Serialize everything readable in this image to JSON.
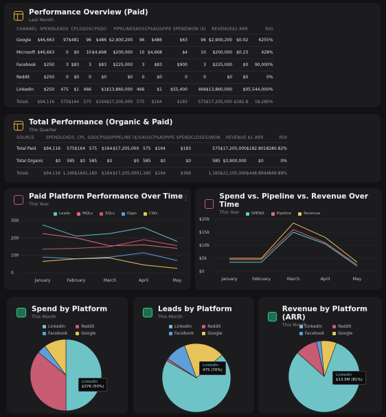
{
  "colors": {
    "linkedin": "#6ec3c6",
    "reddit": "#c75c73",
    "facebook": "#5e9fd8",
    "google": "#e8c35a",
    "leads": "#5ec6cf",
    "mqls": "#e06b7a",
    "sqls": "#c9596c",
    "opps": "#5a9fe0",
    "cws": "#e8c65a",
    "spend": "#5ec6cf",
    "pipeline": "#e06b7a",
    "revenue": "#e8c65a"
  },
  "perf_paid": {
    "title": "Performance Overview (Paid)",
    "subtitle": "Last Month",
    "headers": [
      "CHANNEL",
      "SPEND",
      "LEADS",
      "CPL",
      "SQOS",
      "CPSQO",
      "PIPELINE",
      "SAOS",
      "CPSAOS",
      "PIPE SPEND",
      "WON ($)",
      "REVENUE",
      "$1 ARR",
      "ROI"
    ],
    "rows": [
      [
        "Google",
        "$46,663",
        "97",
        "$481",
        "96",
        "$486",
        "$2,900,200",
        "96",
        "$486",
        "$63",
        "96",
        "$2,900,200",
        "$0.02",
        "6255%"
      ],
      [
        "Microsoft",
        "$46,663",
        "0",
        "$0",
        "10",
        "$4,668",
        "$200,000",
        "10",
        "$4,668",
        "$4",
        "10",
        "$200,000",
        "$0.23",
        "428%"
      ],
      [
        "Facebook",
        "$250",
        "3",
        "$83",
        "3",
        "$83",
        "$225,000",
        "3",
        "$83",
        "$900",
        "3",
        "$225,000",
        "$0",
        "90,000%"
      ],
      [
        "Reddit",
        "$250",
        "0",
        "$0",
        "0",
        "$0",
        "$0",
        "0",
        "$0",
        "0",
        "0",
        "$0",
        "$0",
        "0%"
      ],
      [
        "LinkedIn",
        "$250",
        "475",
        "$1",
        "466",
        "$1",
        "$13,860,000",
        "466",
        "$1",
        "$55,400",
        "466",
        "$13,860,000",
        "$0",
        "5,544,000%"
      ]
    ],
    "total": [
      "Totals",
      "$94,116",
      "575",
      "$164",
      "575",
      "$164",
      "$17,205,000",
      "575",
      "$164",
      "$183",
      "575",
      "$17,205,000",
      "$182.8",
      "18,280%"
    ]
  },
  "perf_total": {
    "title": "Total Performance (Organic & Paid)",
    "subtitle": "This Quarter",
    "headers": [
      "SOURCE",
      "SPEND",
      "LEADS",
      "CPL",
      "SQO",
      "CPSQO",
      "PIPELINE ($)",
      "SAOS",
      "CPSAO",
      "PIPE SPEND",
      "CLOSES/WON",
      "REVENUE",
      "$1 ARR",
      "ROI"
    ],
    "rows": [
      [
        "Total Paid",
        "$94,116",
        "575",
        "$164",
        "575",
        "$164",
        "$17,205,000",
        "575",
        "$164",
        "$183",
        "575",
        "$17,205,000",
        "$182.80",
        "18280.82%"
      ],
      [
        "Total Organic",
        "$0",
        "585",
        "$0",
        "585",
        "$0",
        "$0",
        "585",
        "$0",
        "$0",
        "585",
        "$3,900,000",
        "$0",
        "0%"
      ]
    ],
    "total": [
      "Totals",
      "$94,116",
      "1,160",
      "$164",
      "1,160",
      "$164",
      "$17,205,000",
      "1,160",
      "$164",
      "$366",
      "1,160",
      "$21,105,000",
      "$448.89",
      "44849.89%"
    ]
  },
  "paid_platform": {
    "title": "Paid Platform Performance Over Time",
    "subtitle": "This Year",
    "menu": "⋮"
  },
  "spend_pipeline": {
    "title": "Spend vs. Pipeline vs. Revenue Over Time",
    "subtitle": "This Year"
  },
  "spend_platform": {
    "title": "Spend by Platform",
    "subtitle": "This Month",
    "tip_label": "LinkedIn",
    "tip_value": "$37K (50%)"
  },
  "leads_platform": {
    "title": "Leads by Platform",
    "subtitle": "This Month",
    "tip_label": "LinkedIn",
    "tip_value": "475 (70%)"
  },
  "revenue_platform": {
    "title": "Revenue by Platform (ARR)",
    "subtitle": "This Month",
    "tip_label": "LinkedIn",
    "tip_value": "$13.5M (81%)"
  },
  "platform_legend": [
    "LinkedIn",
    "Reddit",
    "Facebook",
    "Google"
  ],
  "chart_data": [
    {
      "type": "line",
      "title": "Paid Platform Performance Over Time",
      "categories": [
        "January",
        "February",
        "March",
        "April",
        "May"
      ],
      "ylim": [
        0,
        300
      ],
      "yticks": [
        "0",
        "100",
        "200",
        "300"
      ],
      "series": [
        {
          "name": "Leads",
          "values": [
            275,
            210,
            225,
            260,
            180
          ]
        },
        {
          "name": "MQLs",
          "values": [
            225,
            200,
            155,
            160,
            140
          ]
        },
        {
          "name": "SQLs",
          "values": [
            135,
            140,
            150,
            190,
            155
          ]
        },
        {
          "name": "Opps",
          "values": [
            90,
            80,
            90,
            115,
            70
          ]
        },
        {
          "name": "CWs",
          "values": [
            65,
            80,
            85,
            45,
            25
          ]
        }
      ]
    },
    {
      "type": "line",
      "title": "Spend vs. Pipeline vs. Revenue Over Time",
      "categories": [
        "January",
        "February",
        "March",
        "April",
        "May"
      ],
      "ylim": [
        0,
        20000
      ],
      "yticks": [
        "$0",
        "$5k",
        "$10k",
        "$15k",
        "$20k"
      ],
      "series": [
        {
          "name": "SPEND",
          "values": [
            3500,
            3500,
            15000,
            10500,
            2000
          ]
        },
        {
          "name": "Pipeline",
          "values": [
            4500,
            4500,
            16000,
            11000,
            2500
          ]
        },
        {
          "name": "Revenue",
          "values": [
            5000,
            5000,
            18500,
            13000,
            3500
          ]
        }
      ]
    },
    {
      "type": "pie",
      "title": "Spend by Platform",
      "labels": [
        "LinkedIn",
        "Reddit",
        "Facebook",
        "Google"
      ],
      "values": [
        50,
        36,
        4,
        10
      ]
    },
    {
      "type": "pie",
      "title": "Leads by Platform",
      "labels": [
        "LinkedIn",
        "Reddit",
        "Facebook",
        "Google"
      ],
      "values": [
        70,
        1,
        10,
        19
      ]
    },
    {
      "type": "pie",
      "title": "Revenue by Platform (ARR)",
      "labels": [
        "LinkedIn",
        "Reddit",
        "Facebook",
        "Google"
      ],
      "values": [
        81,
        10,
        2,
        7
      ]
    }
  ]
}
